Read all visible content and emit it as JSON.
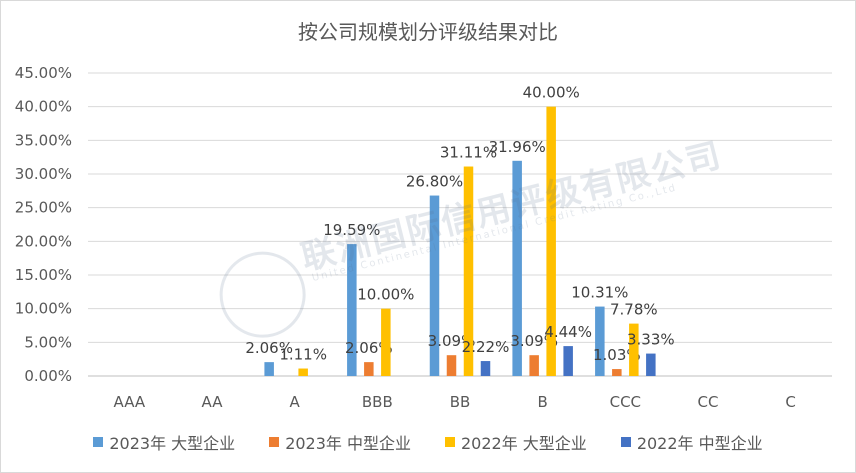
{
  "chart_data": {
    "type": "bar",
    "title": "按公司规模划分评级结果对比",
    "categories": [
      "AAA",
      "AA",
      "A",
      "BBB",
      "BB",
      "B",
      "CCC",
      "CC",
      "C"
    ],
    "ylim": [
      0,
      45
    ],
    "yticks": [
      "0.00%",
      "5.00%",
      "10.00%",
      "15.00%",
      "20.00%",
      "25.00%",
      "30.00%",
      "35.00%",
      "40.00%",
      "45.00%"
    ],
    "grid": true,
    "legend_position": "bottom",
    "series": [
      {
        "name": "2023年 大型企业",
        "color": "#5b9bd5",
        "values": [
          null,
          null,
          2.06,
          19.59,
          26.8,
          31.96,
          10.31,
          null,
          null
        ],
        "labels": [
          null,
          null,
          "2.06%",
          "19.59%",
          "26.80%",
          "31.96%",
          "10.31%",
          null,
          null
        ]
      },
      {
        "name": "2023年 中型企业",
        "color": "#ed7d31",
        "values": [
          null,
          null,
          null,
          2.06,
          3.09,
          3.09,
          1.03,
          null,
          null
        ],
        "labels": [
          null,
          null,
          null,
          "2.06%",
          "3.09%",
          "3.09%",
          "1.03%",
          null,
          null
        ]
      },
      {
        "name": "2022年 大型企业",
        "color": "#ffc000",
        "values": [
          null,
          null,
          1.11,
          10.0,
          31.11,
          40.0,
          7.78,
          null,
          null
        ],
        "labels": [
          null,
          null,
          "1.11%",
          "10.00%",
          "31.11%",
          "40.00%",
          "7.78%",
          null,
          null
        ]
      },
      {
        "name": "2022年 中型企业",
        "color": "#4472c4",
        "values": [
          null,
          null,
          null,
          null,
          2.22,
          4.44,
          3.33,
          null,
          null
        ],
        "labels": [
          null,
          null,
          null,
          null,
          "2.22%",
          "4.44%",
          "3.33%",
          null,
          null
        ]
      }
    ]
  },
  "watermark": {
    "text_cn": "联洲国际信用评级有限公司",
    "text_en": "United Continental International Credit Rating Co.,Ltd"
  }
}
